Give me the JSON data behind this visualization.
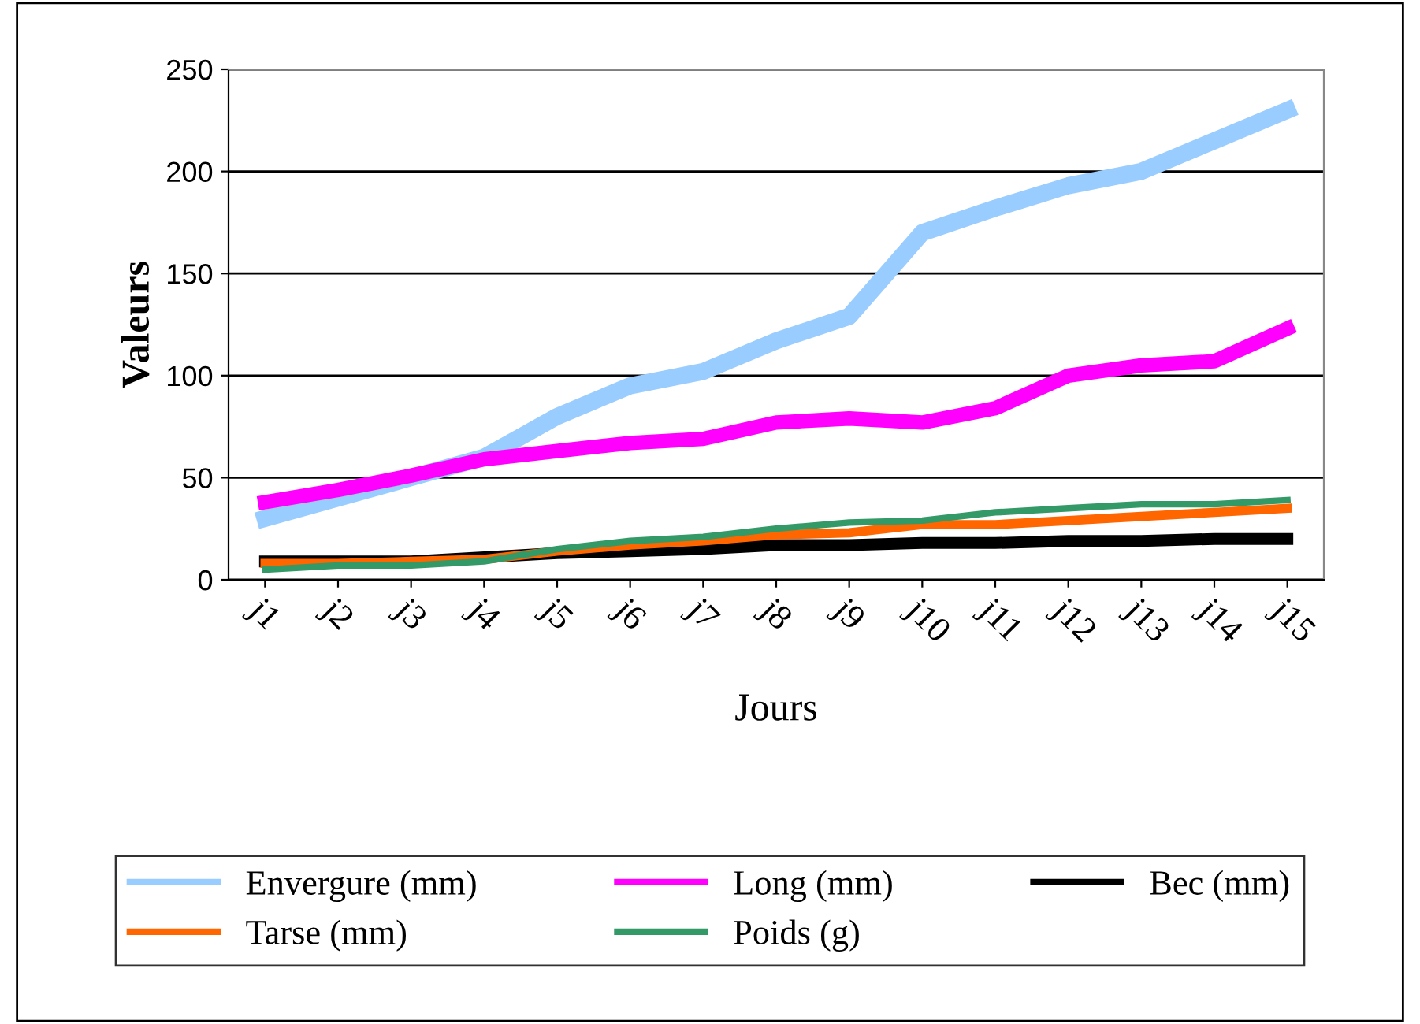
{
  "chart_data": {
    "type": "line",
    "xlabel": "Jours",
    "ylabel": "Valeurs",
    "categories": [
      "j1",
      "j2",
      "j3",
      "j4",
      "j5",
      "j6",
      "j7",
      "j8",
      "j9",
      "j10",
      "j11",
      "j12",
      "j13",
      "j14",
      "j15"
    ],
    "series": [
      {
        "name": "Envergure (mm)",
        "color": "#99ccff",
        "values": [
          30,
          40,
          50,
          60,
          80,
          95,
          102,
          117,
          129,
          170,
          182,
          193,
          200,
          215,
          230
        ]
      },
      {
        "name": "Long (mm)",
        "color": "#ff00ff",
        "values": [
          38,
          44,
          51,
          59,
          63,
          67,
          69,
          77,
          79,
          77,
          84,
          100,
          105,
          107,
          123
        ]
      },
      {
        "name": "Bec (mm)",
        "color": "#000000",
        "values": [
          9,
          9,
          9,
          11,
          13,
          14,
          15,
          17,
          17,
          18,
          18,
          19,
          19,
          20,
          20
        ]
      },
      {
        "name": "Tarse (mm)",
        "color": "#ff6600",
        "values": [
          8,
          8,
          9,
          10,
          14,
          17,
          19,
          22,
          23,
          27,
          27,
          29,
          31,
          33,
          35
        ]
      },
      {
        "name": "Poids (g)",
        "color": "#339966",
        "values": [
          5,
          7,
          7,
          9,
          15,
          19,
          21,
          25,
          28,
          29,
          33,
          35,
          37,
          37,
          39
        ]
      }
    ],
    "ylim": [
      0,
      250
    ],
    "yticks": [
      0,
      50,
      100,
      150,
      200,
      250
    ],
    "grid": "y",
    "legend": "bottom",
    "marker": "none",
    "line_style": "solid"
  }
}
